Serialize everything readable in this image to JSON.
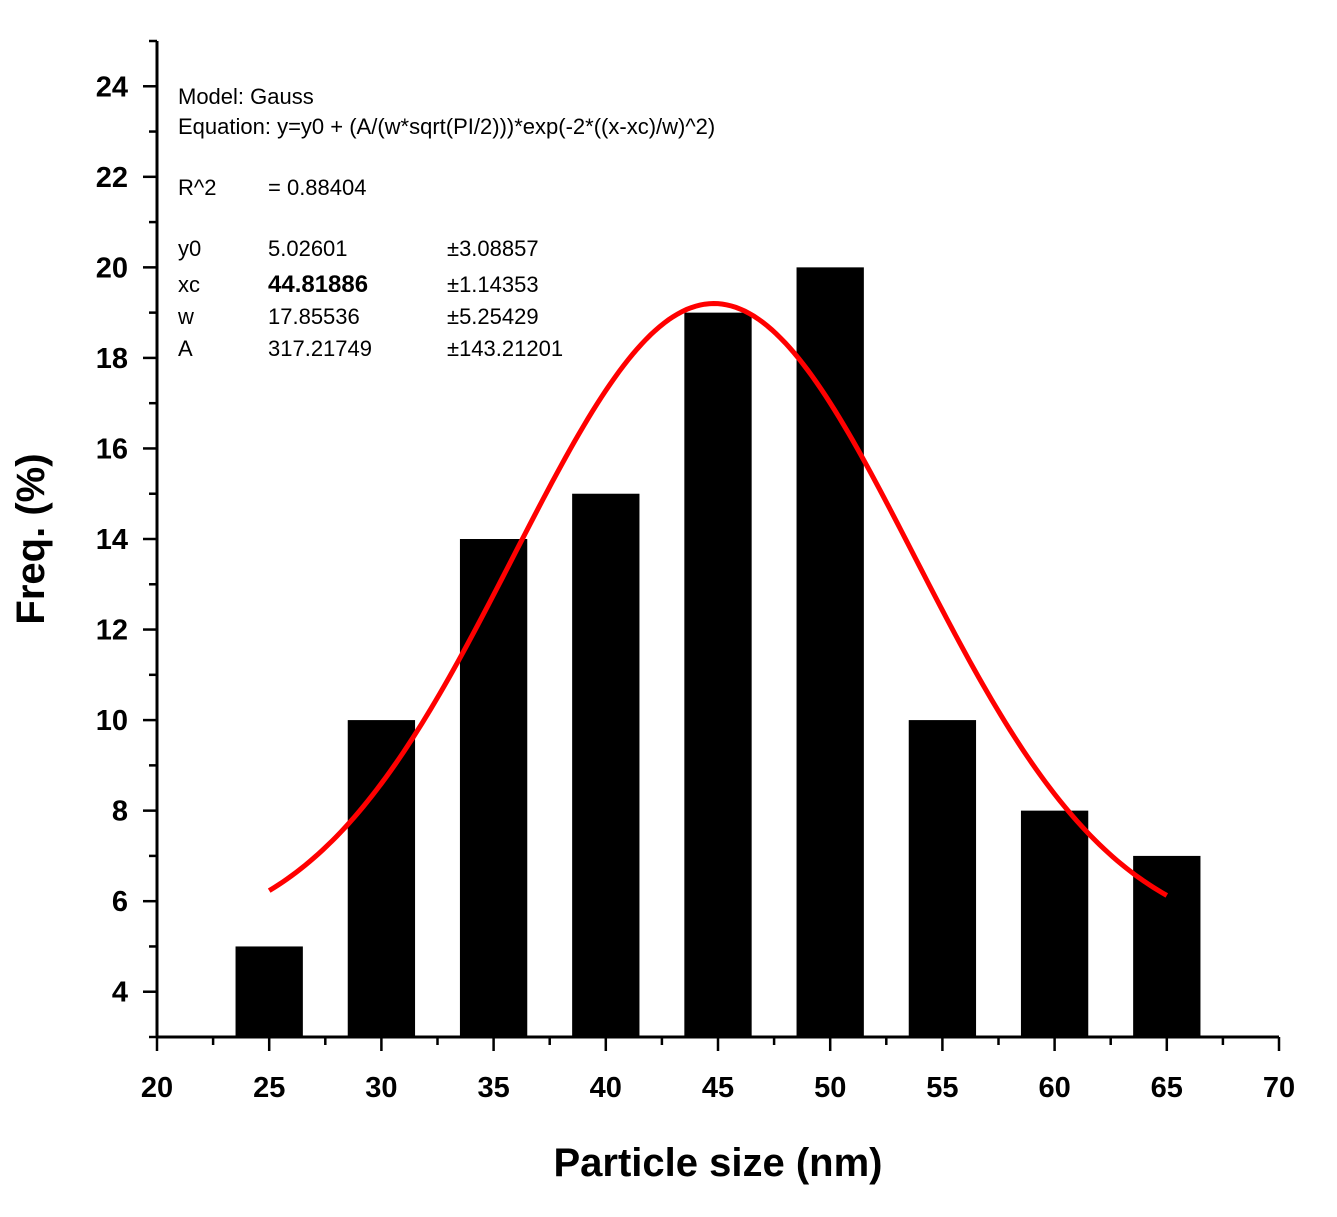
{
  "chart_data": {
    "type": "bar",
    "x": [
      25,
      30,
      35,
      40,
      45,
      50,
      55,
      60,
      65
    ],
    "values": [
      5,
      10,
      14,
      15,
      19,
      20,
      10,
      8,
      7
    ],
    "bar_width": 3,
    "xlabel": "Particle size (nm)",
    "ylabel": "Freq. (%)",
    "xlim": [
      20,
      70
    ],
    "ylim": [
      3,
      25
    ],
    "xticks": [
      "20",
      "25",
      "30",
      "35",
      "40",
      "45",
      "50",
      "55",
      "60",
      "65",
      "70"
    ],
    "yticks": [
      "4",
      "6",
      "8",
      "10",
      "12",
      "14",
      "16",
      "18",
      "20",
      "22",
      "24"
    ],
    "grid": false,
    "colors": {
      "bars": "#000000",
      "fit": "#ff0000"
    },
    "fit": {
      "model": "Gauss",
      "x_range": [
        25,
        65
      ],
      "y0": 5.02601,
      "xc": 44.81886,
      "w": 17.85536,
      "A": 317.21749
    },
    "annotation": {
      "model_line": "Model: Gauss",
      "equation_line": "Equation: y=y0 + (A/(w*sqrt(PI/2)))*exp(-2*((x-xc)/w)^2)",
      "r2_label": "R^2",
      "r2_value": "=  0.88404",
      "params": [
        {
          "name": "y0",
          "value": "5.02601",
          "error": "±3.08857"
        },
        {
          "name": "xc",
          "value": "44.81886",
          "error": "±1.14353"
        },
        {
          "name": "w",
          "value": "17.85536",
          "error": "±5.25429"
        },
        {
          "name": "A",
          "value": "317.21749",
          "error": "±143.21201"
        }
      ]
    }
  }
}
